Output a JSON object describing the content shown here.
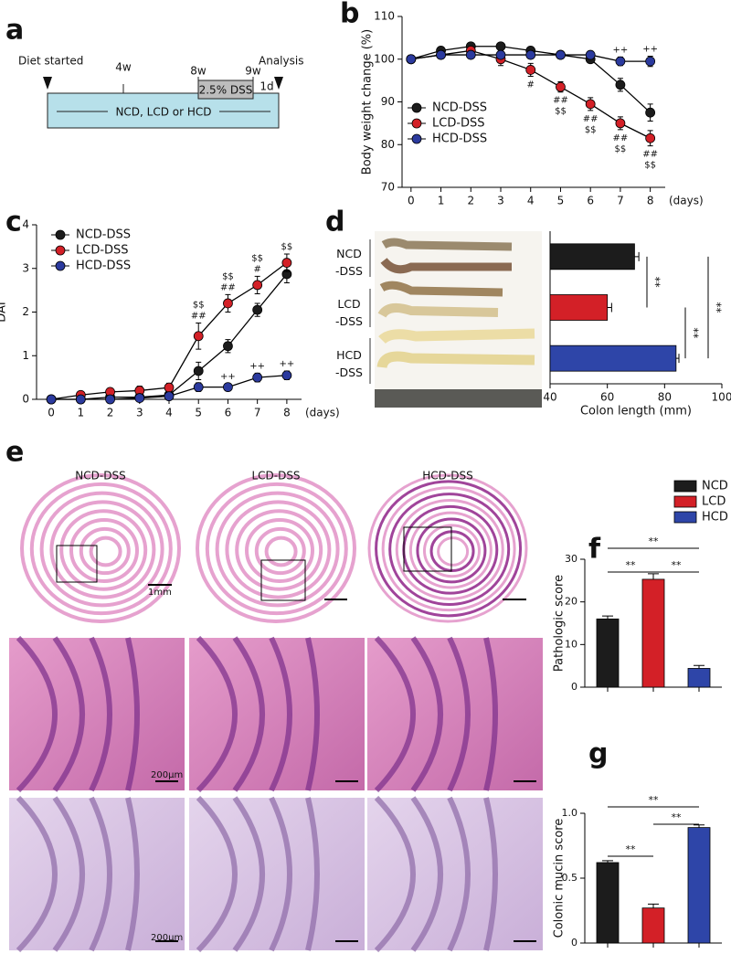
{
  "panel_labels": [
    "a",
    "b",
    "c",
    "d",
    "e",
    "f",
    "g"
  ],
  "timeline": {
    "start": "Diet started",
    "end": "Analysis",
    "marks": [
      "4w",
      "8w",
      "9w"
    ],
    "treatment": "2.5% DSS",
    "recovery": "1d",
    "diet": "NCD, LCD or HCD"
  },
  "histology": {
    "columns": [
      "NCD-DSS",
      "LCD-DSS",
      "HCD-DSS"
    ],
    "scale_whole": "1mm",
    "scale_zoom": [
      "200μm",
      "200μm"
    ]
  },
  "chart_data": [
    {
      "type": "line",
      "y_label": "Body weight change (%)",
      "x_label": "(days)",
      "x": [
        0,
        1,
        2,
        3,
        4,
        5,
        6,
        7,
        8
      ],
      "xlim": [
        -0.3,
        8.5
      ],
      "xticks": [
        0,
        1,
        2,
        3,
        4,
        5,
        6,
        7,
        8
      ],
      "ylim": [
        70,
        110
      ],
      "yticks": [
        70,
        80,
        90,
        100,
        110
      ],
      "line_color": "#000000",
      "series": [
        {
          "name": "NCD-DSS",
          "color": "#1c1c1c",
          "values": [
            100,
            102,
            103,
            103,
            102,
            101,
            100,
            94,
            87.5
          ],
          "errors": [
            0,
            0.5,
            0.8,
            0.7,
            0.6,
            0.5,
            0.8,
            1.5,
            2
          ]
        },
        {
          "name": "LCD-DSS",
          "color": "#d32027",
          "values": [
            100,
            101,
            102,
            100,
            97.5,
            93.5,
            89.5,
            85,
            81.5
          ],
          "errors": [
            0,
            0.5,
            0.8,
            1.5,
            1.5,
            1.2,
            1.5,
            1.5,
            1.8
          ]
        },
        {
          "name": "HCD-DSS",
          "color": "#2b3a9e",
          "values": [
            100,
            101,
            101,
            101,
            101,
            101,
            101,
            99.5,
            99.5
          ],
          "errors": [
            0,
            0.5,
            0.5,
            0.5,
            0.5,
            0.5,
            0.8,
            1,
            1.2
          ]
        }
      ],
      "annotations": [
        {
          "x": 4,
          "series": 1,
          "side": "below",
          "lines": [
            "#"
          ]
        },
        {
          "x": 5,
          "series": 1,
          "side": "below",
          "lines": [
            "##",
            "$$"
          ]
        },
        {
          "x": 6,
          "series": 1,
          "side": "below",
          "lines": [
            "##",
            "$$"
          ]
        },
        {
          "x": 7,
          "series": 1,
          "side": "below",
          "lines": [
            "##",
            "$$"
          ]
        },
        {
          "x": 8,
          "series": 1,
          "side": "below",
          "lines": [
            "##",
            "$$"
          ]
        },
        {
          "x": 7,
          "series": 2,
          "side": "above",
          "lines": [
            "++"
          ]
        },
        {
          "x": 8,
          "series": 2,
          "side": "above",
          "lines": [
            "++"
          ]
        }
      ]
    },
    {
      "type": "line",
      "y_label": "DAI",
      "x_label": "(days)",
      "x": [
        0,
        1,
        2,
        3,
        4,
        5,
        6,
        7,
        8
      ],
      "xlim": [
        -0.5,
        8.5
      ],
      "xticks": [
        0,
        1,
        2,
        3,
        4,
        5,
        6,
        7,
        8
      ],
      "ylim": [
        0,
        4
      ],
      "yticks": [
        0,
        1,
        2,
        3,
        4
      ],
      "line_color": "#000000",
      "series": [
        {
          "name": "NCD-DSS",
          "color": "#1c1c1c",
          "values": [
            0,
            0,
            0.05,
            0.05,
            0.1,
            0.65,
            1.22,
            2.05,
            2.87
          ],
          "errors": [
            0,
            0.02,
            0.05,
            0.05,
            0.05,
            0.2,
            0.15,
            0.15,
            0.2
          ]
        },
        {
          "name": "LCD-DSS",
          "color": "#d32027",
          "values": [
            0,
            0.1,
            0.17,
            0.2,
            0.27,
            1.45,
            2.2,
            2.62,
            3.13
          ],
          "errors": [
            0,
            0.05,
            0.05,
            0.1,
            0.1,
            0.3,
            0.2,
            0.2,
            0.2
          ]
        },
        {
          "name": "HCD-DSS",
          "color": "#2b3a9e",
          "values": [
            0,
            0,
            0,
            0.03,
            0.07,
            0.28,
            0.28,
            0.5,
            0.55
          ],
          "errors": [
            0,
            0,
            0,
            0.03,
            0.05,
            0.1,
            0.08,
            0.1,
            0.1
          ]
        }
      ],
      "annotations": [
        {
          "x": 5,
          "series": 1,
          "side": "above",
          "lines": [
            "$$",
            "##"
          ]
        },
        {
          "x": 6,
          "series": 1,
          "side": "above",
          "lines": [
            "$$",
            "##"
          ]
        },
        {
          "x": 7,
          "series": 1,
          "side": "above",
          "lines": [
            "$$",
            "#"
          ]
        },
        {
          "x": 8,
          "series": 1,
          "side": "above",
          "lines": [
            "$$"
          ]
        },
        {
          "x": 6,
          "series": 2,
          "side": "above",
          "lines": [
            "++"
          ]
        },
        {
          "x": 7,
          "series": 2,
          "side": "above",
          "lines": [
            "++"
          ]
        },
        {
          "x": 8,
          "series": 2,
          "side": "above",
          "lines": [
            "++"
          ]
        }
      ]
    },
    {
      "type": "hbar",
      "x_label": "Colon length (mm)",
      "categories": [
        "NCD\n-DSS",
        "LCD\n-DSS",
        "HCD\n-DSS"
      ],
      "values": [
        69.5,
        60,
        84
      ],
      "errors": [
        1.5,
        1.5,
        1
      ],
      "colors": [
        "#1c1c1c",
        "#d32027",
        "#2e45a8"
      ],
      "xlim": [
        40,
        100
      ],
      "xticks": [
        40,
        60,
        80,
        100
      ],
      "significance": [
        "**",
        "**",
        "**"
      ]
    },
    {
      "type": "bar",
      "y_label": "Pathologic score",
      "categories": [
        null,
        null,
        null
      ],
      "legend": [
        "NCD",
        "LCD",
        "HCD"
      ],
      "values": [
        16,
        25.3,
        4.4
      ],
      "errors": [
        0.7,
        1.3,
        0.7
      ],
      "colors": [
        "#1c1c1c",
        "#d32027",
        "#2e45a8"
      ],
      "ylim": [
        0,
        30
      ],
      "yticks": [
        0,
        10,
        20,
        30
      ],
      "significance": [
        "**",
        "**",
        "**"
      ]
    },
    {
      "type": "bar",
      "y_label": "Colonic mucin score",
      "categories": [
        null,
        null,
        null
      ],
      "values": [
        0.62,
        0.27,
        0.89
      ],
      "errors": [
        0.015,
        0.03,
        0.02
      ],
      "colors": [
        "#1c1c1c",
        "#d32027",
        "#2e45a8"
      ],
      "ylim": [
        0,
        1
      ],
      "yticks": [
        0,
        0.5,
        {
          "value": 1,
          "label": "1.0"
        }
      ],
      "significance": [
        "**",
        "**",
        "**"
      ]
    }
  ]
}
